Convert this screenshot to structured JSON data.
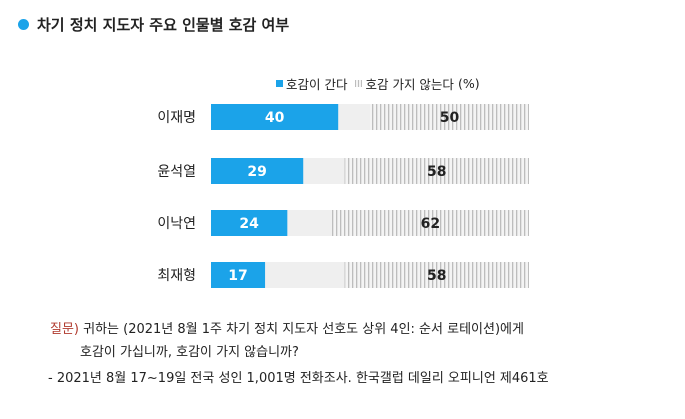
{
  "title": "차기 정치 지도자 주요 인물별 호감 여부",
  "colors": {
    "favorable": "#1ba3e9",
    "unfavorable_hatch": "#bdbdbd",
    "neutral": "#efefef",
    "title_dot": "#1ba3e9",
    "question_label": "#b03a2e"
  },
  "legend": {
    "favorable": "호감이 간다",
    "unfavorable": "호감 가지 않는다",
    "unit": "(%)"
  },
  "chart_data": {
    "type": "bar",
    "stacked": true,
    "orientation": "horizontal",
    "categories": [
      "이재명",
      "윤석열",
      "이낙연",
      "최재형"
    ],
    "series": [
      {
        "name": "호감이 간다",
        "values": [
          40,
          29,
          24,
          17
        ]
      },
      {
        "name": "호감 가지 않는다",
        "values": [
          50,
          58,
          62,
          58
        ]
      }
    ],
    "xlim": [
      0,
      100
    ],
    "grid": false,
    "legend_position": "top-right"
  },
  "notes": {
    "question_label": "질문)",
    "question_line1": "귀하는 (2021년 8월 1주 차기 정치 지도자 선호도 상위 4인: 순서 로테이션)에게",
    "question_line2": "호감이 가십니까, 호감이 가지 않습니까?",
    "source": "- 2021년 8월 17~19일 전국 성인 1,001명 전화조사. 한국갤럽 데일리 오피니언 제461호"
  }
}
